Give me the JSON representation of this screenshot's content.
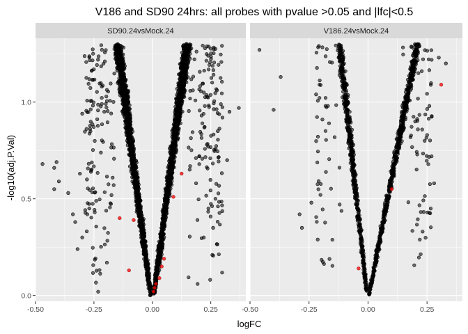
{
  "chart_data": {
    "type": "scatter",
    "title": "V186 and SD90 24hrs: all probes with pvalue >0.05 and |lfc|<0.5",
    "xlabel": "logFC",
    "ylabel": "-log10(adj.P.Val)",
    "xlim": [
      -0.5,
      0.4
    ],
    "ylim": [
      -0.03,
      1.33
    ],
    "x_ticks": [
      -0.5,
      -0.25,
      0.0,
      0.25
    ],
    "x_tick_labels": [
      "-0.50",
      "-0.25",
      "0.00",
      "0.25"
    ],
    "y_ticks": [
      0.0,
      0.5,
      1.0
    ],
    "y_tick_labels": [
      "0.0",
      "0.5",
      "1.0"
    ],
    "grid": true,
    "legend": "none",
    "colors": {
      "panel_bg": "#ebebeb",
      "strip_bg": "#d9d9d9",
      "grid_major": "#ffffff",
      "points": "#000000",
      "highlight": "#ff0000"
    },
    "panels": [
      {
        "strip": "SD90.24vsMock.24",
        "highlight": [
          {
            "x": -0.14,
            "y": 0.4
          },
          {
            "x": -0.08,
            "y": 0.39
          },
          {
            "x": -0.1,
            "y": 0.13
          },
          {
            "x": 0.09,
            "y": 0.51
          },
          {
            "x": 0.125,
            "y": 0.63
          },
          {
            "x": 0.05,
            "y": 0.19
          },
          {
            "x": 0.04,
            "y": 0.15
          },
          {
            "x": 0.03,
            "y": 0.09
          },
          {
            "x": 0.015,
            "y": 0.06
          },
          {
            "x": 0.01,
            "y": 0.04
          },
          {
            "x": 0.005,
            "y": 0.02
          }
        ],
        "outliers": [
          {
            "x": -0.47,
            "y": 0.68
          },
          {
            "x": -0.41,
            "y": 0.69
          },
          {
            "x": -0.42,
            "y": 0.66
          },
          {
            "x": -0.42,
            "y": 0.55
          },
          {
            "x": -0.4,
            "y": 0.59
          },
          {
            "x": -0.36,
            "y": 0.53
          },
          {
            "x": -0.34,
            "y": 0.42
          },
          {
            "x": -0.33,
            "y": 0.38
          },
          {
            "x": -0.27,
            "y": 0.45
          },
          {
            "x": -0.3,
            "y": 0.94
          },
          {
            "x": -0.31,
            "y": 0.63
          },
          {
            "x": -0.32,
            "y": 0.24
          },
          {
            "x": -0.3,
            "y": 0.3
          },
          {
            "x": -0.28,
            "y": 0.6
          },
          {
            "x": 0.37,
            "y": 0.97
          },
          {
            "x": 0.33,
            "y": 0.95
          },
          {
            "x": 0.32,
            "y": 0.7
          },
          {
            "x": 0.3,
            "y": 0.92
          },
          {
            "x": 0.28,
            "y": 0.85
          },
          {
            "x": 0.27,
            "y": 0.5
          },
          {
            "x": 0.26,
            "y": 0.35
          },
          {
            "x": 0.24,
            "y": 0.45
          },
          {
            "x": 0.22,
            "y": 0.3
          }
        ],
        "cloud": {
          "count": 2600,
          "ymax": 1.3,
          "y_power": 0.8,
          "left_base": 0.012,
          "left_edge": -0.135,
          "right_base": 0.012,
          "right_edge": 0.135,
          "spread": 0.055,
          "left_share": 0.5,
          "sparse_count": 280,
          "sparse_left": -0.29,
          "sparse_right": 0.3
        }
      },
      {
        "strip": "V186.24vsMock.24",
        "highlight": [
          {
            "x": 0.31,
            "y": 1.09
          },
          {
            "x": 0.1,
            "y": 0.55
          },
          {
            "x": -0.04,
            "y": 0.14
          }
        ],
        "outliers": [
          {
            "x": -0.46,
            "y": 1.27
          },
          {
            "x": -0.4,
            "y": 0.96
          },
          {
            "x": -0.37,
            "y": 1.13
          },
          {
            "x": -0.29,
            "y": 0.42
          },
          {
            "x": -0.28,
            "y": 0.35
          },
          {
            "x": -0.24,
            "y": 0.48
          },
          {
            "x": -0.22,
            "y": 1.04
          },
          {
            "x": -0.18,
            "y": 0.98
          },
          {
            "x": 0.3,
            "y": 1.23
          },
          {
            "x": 0.33,
            "y": 1.2
          },
          {
            "x": 0.28,
            "y": 0.58
          },
          {
            "x": 0.26,
            "y": 0.98
          },
          {
            "x": 0.24,
            "y": 0.8
          },
          {
            "x": 0.2,
            "y": 0.9
          }
        ],
        "cloud": {
          "count": 1200,
          "ymax": 1.3,
          "y_power": 0.85,
          "left_base": 0.008,
          "left_edge": -0.11,
          "right_base": 0.008,
          "right_edge": 0.2,
          "spread": 0.04,
          "left_share": 0.42,
          "sparse_count": 120,
          "sparse_left": -0.22,
          "sparse_right": 0.27
        }
      }
    ]
  }
}
